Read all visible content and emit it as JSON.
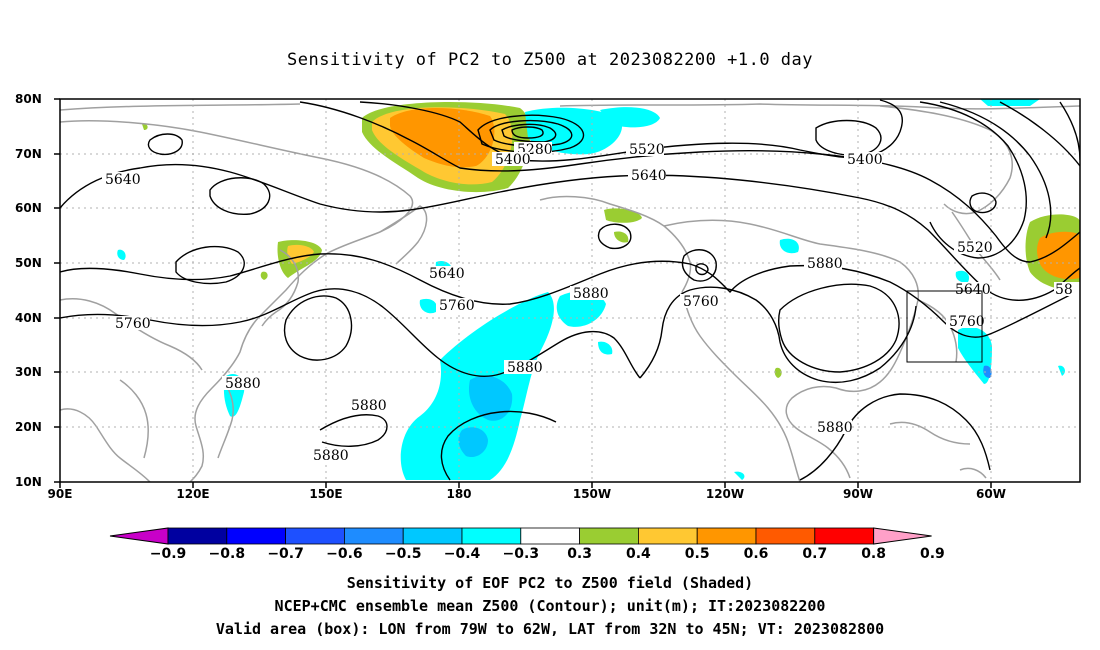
{
  "title": "Sensitivity of PC2 to Z500 at 2023082200 +1.0 day",
  "map": {
    "lat_labels": [
      "80N",
      "70N",
      "60N",
      "50N",
      "40N",
      "30N",
      "20N",
      "10N"
    ],
    "lon_labels": [
      "90E",
      "120E",
      "150E",
      "180",
      "150W",
      "120W",
      "90W",
      "60W"
    ],
    "lon_range": [
      90,
      305
    ],
    "lat_range": [
      10,
      80
    ],
    "contour_labels": [
      "5280",
      "5400",
      "5520",
      "5400",
      "5640",
      "5640",
      "5640",
      "5520",
      "5640",
      "5760",
      "5880",
      "5880",
      "5760",
      "5760",
      "5760",
      "5880",
      "5880",
      "5880",
      "5880",
      "5880",
      "58"
    ],
    "valid_box": {
      "lon_from": "79W",
      "lon_to": "62W",
      "lat_from": "32N",
      "lat_to": "45N"
    }
  },
  "colorbar": {
    "labels": [
      "-0.9",
      "-0.8",
      "-0.7",
      "-0.6",
      "-0.5",
      "-0.4",
      "-0.3",
      "0.3",
      "0.4",
      "0.5",
      "0.6",
      "0.7",
      "0.8",
      "0.9"
    ],
    "colors": [
      "#0000a0",
      "#0000ff",
      "#1e50ff",
      "#1e8cff",
      "#00c8ff",
      "#00ffff",
      "#ffffff",
      "#9acd32",
      "#ffc832",
      "#ff9600",
      "#ff5a00",
      "#ff0000"
    ],
    "low_end_color": "#c800c8",
    "high_end_color": "#ffa0c8"
  },
  "captions": {
    "line1": "Sensitivity of EOF PC2 to Z500 field (Shaded)",
    "line2": "NCEP+CMC ensemble mean Z500 (Contour); unit(m); IT:2023082200",
    "line3": "Valid area (box): LON from 79W to 62W, LAT from 32N to 45N; VT: 2023082800"
  }
}
